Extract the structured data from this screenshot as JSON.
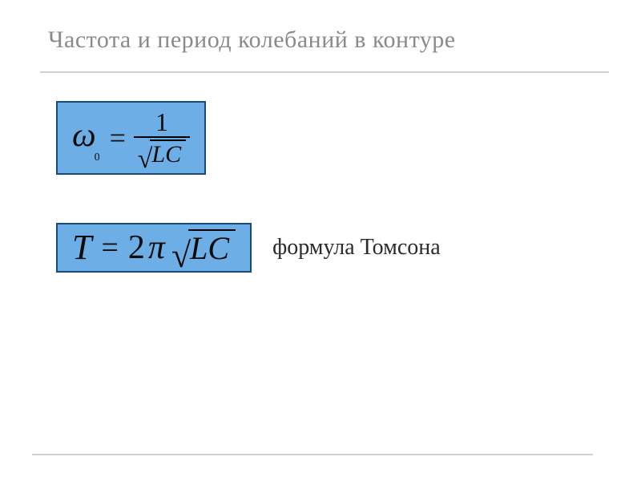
{
  "title": "Частота и период колебаний в контуре",
  "formula1": {
    "lhs_symbol": "ω",
    "lhs_subscript": "0",
    "equals": "=",
    "numerator": "1",
    "radicand": "LC",
    "box_bg": "#6eaee6",
    "box_border": "#1a4a7a"
  },
  "formula2": {
    "lhs": "T",
    "equals": "=",
    "coeff": "2",
    "pi": "π",
    "radicand": "LC",
    "box_bg": "#6eaee6",
    "box_border": "#1a4a7a"
  },
  "caption": "формула Томсона",
  "colors": {
    "title_color": "#8a8a8a",
    "divider_color": "#cfcfcf",
    "text_color": "#2b2b2b",
    "background": "#ffffff"
  },
  "typography": {
    "title_fontsize_pt": 22,
    "caption_fontsize_pt": 21,
    "formula_fontsize_pt": 32,
    "font_family": "serif"
  }
}
